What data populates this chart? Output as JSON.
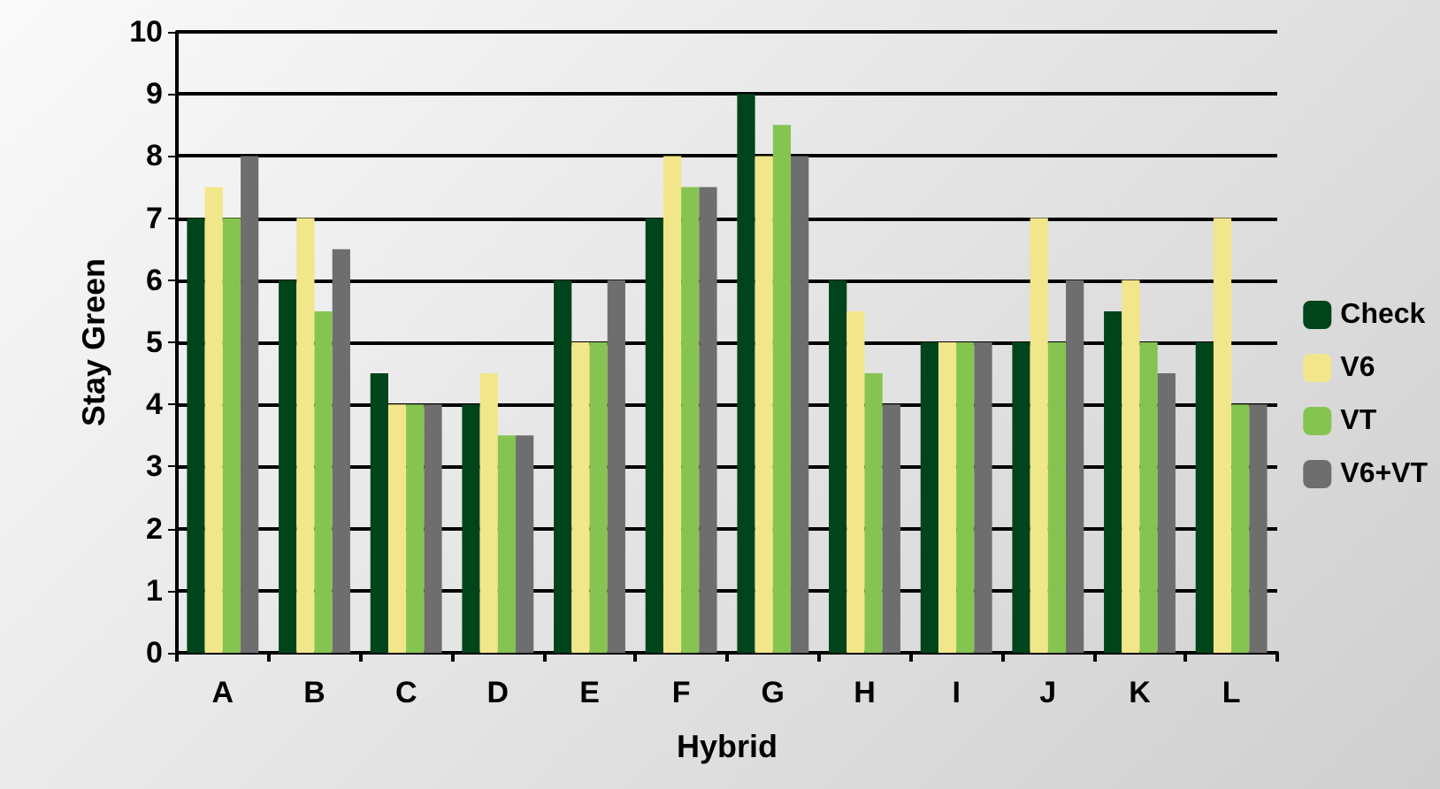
{
  "chart_data": {
    "type": "bar",
    "xlabel": "Hybrid",
    "ylabel": "Stay Green",
    "categories": [
      "A",
      "B",
      "C",
      "D",
      "E",
      "F",
      "G",
      "H",
      "I",
      "J",
      "K",
      "L"
    ],
    "series": [
      {
        "name": "Check",
        "color": "#00441b",
        "values": [
          7,
          6,
          4.5,
          4,
          6,
          7,
          9,
          6,
          5,
          5,
          5.5,
          5
        ]
      },
      {
        "name": "V6",
        "color": "#f2e68a",
        "values": [
          7.5,
          7,
          4,
          4.5,
          5,
          8,
          8,
          5.5,
          5,
          7,
          6,
          7
        ]
      },
      {
        "name": "VT",
        "color": "#86c451",
        "values": [
          7,
          5.5,
          4,
          3.5,
          5,
          7.5,
          8.5,
          4.5,
          5,
          5,
          5,
          4
        ]
      },
      {
        "name": "V6+VT",
        "color": "#6e6e6e",
        "values": [
          8,
          6.5,
          4,
          3.5,
          6,
          7.5,
          8,
          4,
          5,
          6,
          4.5,
          4
        ]
      }
    ],
    "ylim": [
      0,
      10
    ],
    "yticks": [
      0,
      1,
      2,
      3,
      4,
      5,
      6,
      7,
      8,
      9,
      10
    ],
    "grid": "y",
    "legend": "right"
  }
}
